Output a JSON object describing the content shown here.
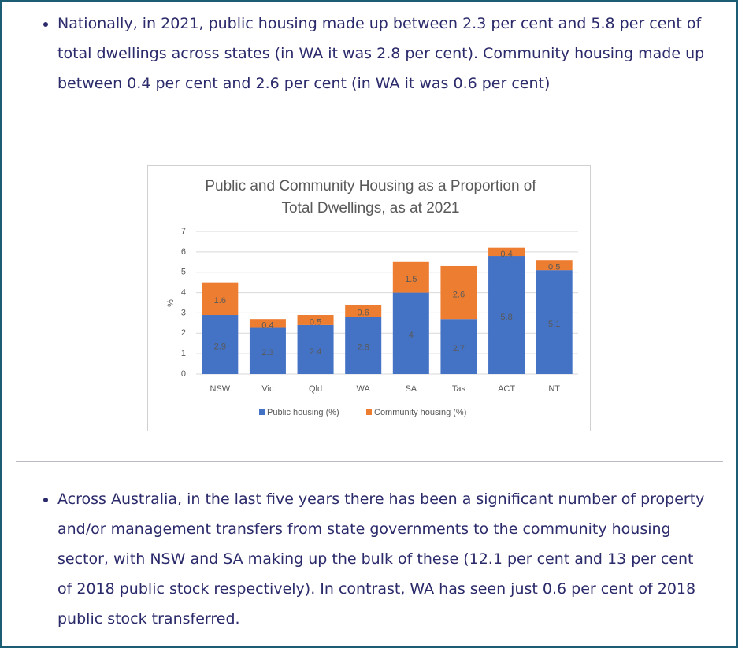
{
  "bullets": [
    "Nationally, in 2021, public housing made up between 2.3 per cent and 5.8 per cent of total dwellings across states (in WA it was 2.8 per cent). Community housing made up between 0.4 per cent and 2.6 per cent (in WA it was 0.6 per cent)",
    "Across Australia, in the last five years there has been a significant number of property and/or management transfers from state governments to the community housing sector, with NSW and SA making up the bulk of these (12.1 per cent and 13 per cent of 2018 public stock respectively). In contrast, WA has seen just 0.6 per cent of 2018 public stock transferred."
  ],
  "chart_data": {
    "type": "bar",
    "stacked": true,
    "title": "Public and Community Housing as a Proportion of Total Dwellings, as at 2021",
    "y_label": "%",
    "categories": [
      "NSW",
      "Vic",
      "Qld",
      "WA",
      "SA",
      "Tas",
      "ACT",
      "NT"
    ],
    "series": [
      {
        "name": "Public housing (%)",
        "color": "#4472c4",
        "values": [
          2.9,
          2.3,
          2.4,
          2.8,
          4,
          2.7,
          5.8,
          5.1
        ]
      },
      {
        "name": "Community housing (%)",
        "color": "#ed7d31",
        "values": [
          1.6,
          0.4,
          0.5,
          0.6,
          1.5,
          2.6,
          0.4,
          0.5
        ]
      }
    ],
    "ylim": [
      0,
      7
    ],
    "yticks": [
      0,
      1,
      2,
      3,
      4,
      5,
      6,
      7
    ],
    "grid": true,
    "legend": "bottom",
    "data_labels": true
  }
}
